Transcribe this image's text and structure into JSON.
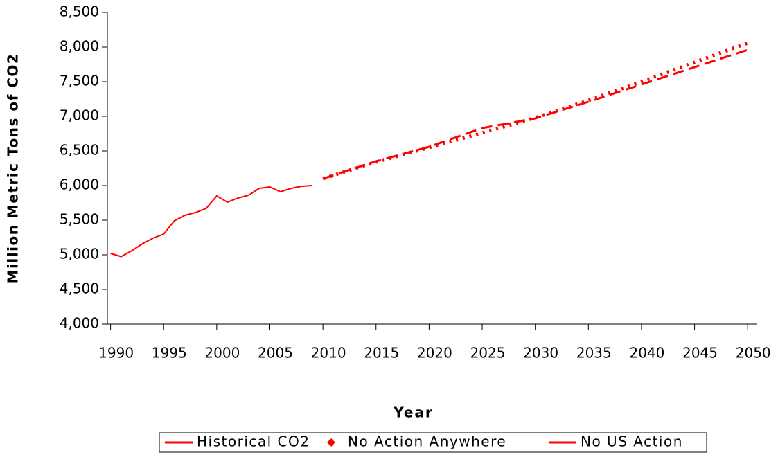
{
  "chart_data": {
    "type": "line",
    "xlabel": "Year",
    "ylabel": "Million Metric Tons of CO2",
    "xlim": [
      1989.7,
      2050.9
    ],
    "xticks": [
      1990,
      1995,
      2000,
      2005,
      2010,
      2015,
      2020,
      2025,
      2030,
      2035,
      2040,
      2045,
      2050
    ],
    "ylim": [
      4000,
      8500
    ],
    "yticks": [
      {
        "value": 4000,
        "label": "4,000"
      },
      {
        "value": 4500,
        "label": "4,500"
      },
      {
        "value": 5000,
        "label": "5,000"
      },
      {
        "value": 5500,
        "label": "5,500"
      },
      {
        "value": 6000,
        "label": "6,000"
      },
      {
        "value": 6500,
        "label": "6,500"
      },
      {
        "value": 7000,
        "label": "7,000"
      },
      {
        "value": 7500,
        "label": "7,500"
      },
      {
        "value": 8000,
        "label": "8,000"
      },
      {
        "value": 8500,
        "label": "8,500"
      }
    ],
    "legend": "bottom",
    "series": [
      {
        "name": "Historical CO2",
        "color": "#ff0000",
        "style": "solid",
        "x": [
          1990,
          1991,
          1992,
          1993,
          1994,
          1995,
          1996,
          1997,
          1998,
          1999,
          2000,
          2001,
          2002,
          2003,
          2004,
          2005,
          2006,
          2007,
          2008,
          2009
        ],
        "values": [
          5020,
          4975,
          5060,
          5160,
          5240,
          5300,
          5490,
          5570,
          5610,
          5670,
          5850,
          5760,
          5820,
          5860,
          5960,
          5980,
          5910,
          5960,
          5990,
          6000
        ]
      },
      {
        "name": "No Action Anywhere",
        "color": "#ff0000",
        "style": "dotted",
        "x": [
          2010,
          2015,
          2020,
          2025,
          2030,
          2035,
          2040,
          2045,
          2050
        ],
        "values": [
          6100,
          6340,
          6550,
          6760,
          6980,
          7230,
          7500,
          7780,
          8060
        ]
      },
      {
        "name": "No US Action",
        "color": "#ff0000",
        "style": "dashed",
        "x": [
          2010,
          2015,
          2020,
          2025,
          2030,
          2035,
          2040,
          2045,
          2050
        ],
        "values": [
          6100,
          6350,
          6560,
          6830,
          6970,
          7210,
          7460,
          7710,
          7960
        ]
      }
    ]
  }
}
